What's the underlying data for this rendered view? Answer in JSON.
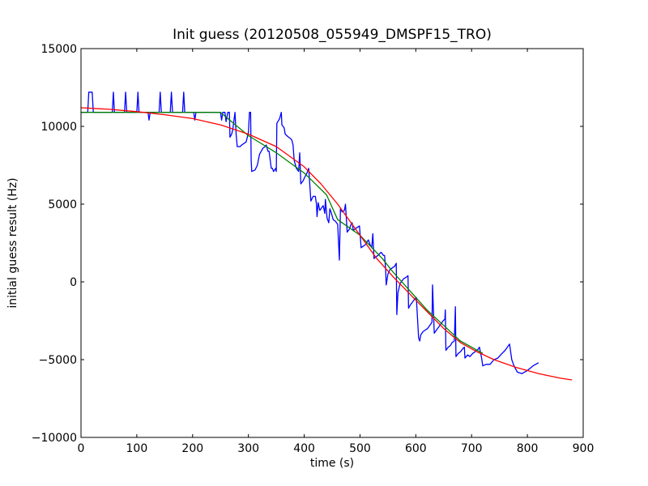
{
  "chart_data": {
    "type": "line",
    "title": "Init guess (20120508_055949_DMSPF15_TRO)",
    "xlabel": "time (s)",
    "ylabel": "initial guess result (Hz)",
    "xlim": [
      0,
      900
    ],
    "ylim": [
      -10000,
      15000
    ],
    "xticks": [
      0,
      100,
      200,
      300,
      400,
      500,
      600,
      700,
      800,
      900
    ],
    "yticks": [
      -10000,
      -5000,
      0,
      5000,
      10000,
      15000
    ],
    "grid": false,
    "legend": "none",
    "series": [
      {
        "color": "#0000ff",
        "points": [
          [
            0,
            10900
          ],
          [
            12,
            10900
          ],
          [
            14,
            12200
          ],
          [
            20,
            12200
          ],
          [
            22,
            10900
          ],
          [
            56,
            10900
          ],
          [
            58,
            12200
          ],
          [
            60,
            10900
          ],
          [
            78,
            10900
          ],
          [
            80,
            12200
          ],
          [
            82,
            10900
          ],
          [
            100,
            10900
          ],
          [
            102,
            12200
          ],
          [
            104,
            10900
          ],
          [
            120,
            10900
          ],
          [
            122,
            10400
          ],
          [
            124,
            10900
          ],
          [
            140,
            10900
          ],
          [
            142,
            12200
          ],
          [
            144,
            10900
          ],
          [
            160,
            10900
          ],
          [
            162,
            12200
          ],
          [
            164,
            10900
          ],
          [
            182,
            10900
          ],
          [
            184,
            12200
          ],
          [
            186,
            10900
          ],
          [
            202,
            10900
          ],
          [
            204,
            10400
          ],
          [
            206,
            10900
          ],
          [
            250,
            10900
          ],
          [
            252,
            10400
          ],
          [
            254,
            10900
          ],
          [
            258,
            10900
          ],
          [
            260,
            10300
          ],
          [
            263,
            10900
          ],
          [
            266,
            10900
          ],
          [
            267,
            9300
          ],
          [
            270,
            9500
          ],
          [
            272,
            9800
          ],
          [
            276,
            10900
          ],
          [
            278,
            9500
          ],
          [
            280,
            8700
          ],
          [
            285,
            8700
          ],
          [
            288,
            8800
          ],
          [
            292,
            8900
          ],
          [
            296,
            9000
          ],
          [
            300,
            9600
          ],
          [
            302,
            10900
          ],
          [
            304,
            10900
          ],
          [
            305,
            7800
          ],
          [
            306,
            7100
          ],
          [
            312,
            7200
          ],
          [
            316,
            7500
          ],
          [
            320,
            8200
          ],
          [
            326,
            8600
          ],
          [
            330,
            8700
          ],
          [
            332,
            8800
          ],
          [
            335,
            8400
          ],
          [
            337,
            8400
          ],
          [
            341,
            7300
          ],
          [
            343,
            7300
          ],
          [
            345,
            7100
          ],
          [
            349,
            7300
          ],
          [
            350,
            7100
          ],
          [
            351,
            10200
          ],
          [
            356,
            10500
          ],
          [
            359,
            10900
          ],
          [
            360,
            10100
          ],
          [
            364,
            9900
          ],
          [
            366,
            9500
          ],
          [
            372,
            9300
          ],
          [
            376,
            9200
          ],
          [
            378,
            9100
          ],
          [
            380,
            8800
          ],
          [
            382,
            7800
          ],
          [
            386,
            7300
          ],
          [
            390,
            7100
          ],
          [
            392,
            8300
          ],
          [
            394,
            6300
          ],
          [
            398,
            6500
          ],
          [
            402,
            6800
          ],
          [
            405,
            7000
          ],
          [
            408,
            7300
          ],
          [
            410,
            6300
          ],
          [
            412,
            5200
          ],
          [
            416,
            5500
          ],
          [
            420,
            5500
          ],
          [
            422,
            5000
          ],
          [
            423,
            4200
          ],
          [
            425,
            5100
          ],
          [
            428,
            4600
          ],
          [
            434,
            4900
          ],
          [
            437,
            4400
          ],
          [
            438,
            5300
          ],
          [
            441,
            4100
          ],
          [
            444,
            3800
          ],
          [
            446,
            4700
          ],
          [
            448,
            4500
          ],
          [
            452,
            4000
          ],
          [
            456,
            3900
          ],
          [
            460,
            3700
          ],
          [
            463,
            1400
          ],
          [
            465,
            4700
          ],
          [
            468,
            4500
          ],
          [
            472,
            4600
          ],
          [
            474,
            5000
          ],
          [
            477,
            3200
          ],
          [
            481,
            3400
          ],
          [
            484,
            3700
          ],
          [
            486,
            3800
          ],
          [
            488,
            3300
          ],
          [
            491,
            3400
          ],
          [
            495,
            3500
          ],
          [
            499,
            3600
          ],
          [
            502,
            2200
          ],
          [
            506,
            2300
          ],
          [
            510,
            2400
          ],
          [
            513,
            2600
          ],
          [
            515,
            2700
          ],
          [
            518,
            2400
          ],
          [
            521,
            2200
          ],
          [
            523,
            3100
          ],
          [
            525,
            1500
          ],
          [
            528,
            1600
          ],
          [
            532,
            1700
          ],
          [
            535,
            1800
          ],
          [
            538,
            1900
          ],
          [
            540,
            1800
          ],
          [
            542,
            1700
          ],
          [
            544,
            1700
          ],
          [
            546,
            800
          ],
          [
            547,
            -200
          ],
          [
            550,
            500
          ],
          [
            554,
            800
          ],
          [
            558,
            900
          ],
          [
            562,
            1000
          ],
          [
            565,
            1200
          ],
          [
            566,
            -2100
          ],
          [
            568,
            -700
          ],
          [
            572,
            -100
          ],
          [
            578,
            200
          ],
          [
            583,
            300
          ],
          [
            586,
            400
          ],
          [
            587,
            -1700
          ],
          [
            590,
            -1500
          ],
          [
            594,
            -1300
          ],
          [
            598,
            -1100
          ],
          [
            601,
            -1000
          ],
          [
            605,
            -3600
          ],
          [
            607,
            -3800
          ],
          [
            609,
            -3400
          ],
          [
            613,
            -3200
          ],
          [
            617,
            -3100
          ],
          [
            621,
            -3000
          ],
          [
            625,
            -2800
          ],
          [
            629,
            -2600
          ],
          [
            630,
            -200
          ],
          [
            633,
            -3300
          ],
          [
            637,
            -3100
          ],
          [
            641,
            -2900
          ],
          [
            645,
            -2700
          ],
          [
            649,
            -2500
          ],
          [
            652,
            -2400
          ],
          [
            653,
            -1800
          ],
          [
            654,
            -4400
          ],
          [
            658,
            -4200
          ],
          [
            662,
            -4100
          ],
          [
            665,
            -3900
          ],
          [
            669,
            -3800
          ],
          [
            671,
            -1600
          ],
          [
            672,
            -4800
          ],
          [
            676,
            -4600
          ],
          [
            680,
            -4500
          ],
          [
            684,
            -4300
          ],
          [
            687,
            -4200
          ],
          [
            688,
            -4900
          ],
          [
            693,
            -4700
          ],
          [
            697,
            -4800
          ],
          [
            702,
            -4600
          ],
          [
            706,
            -4500
          ],
          [
            708,
            -4400
          ],
          [
            710,
            -4400
          ],
          [
            712,
            -4300
          ],
          [
            714,
            -4200
          ],
          [
            718,
            -4900
          ],
          [
            720,
            -5400
          ],
          [
            726,
            -5300
          ],
          [
            733,
            -5300
          ],
          [
            740,
            -5000
          ],
          [
            747,
            -4900
          ],
          [
            752,
            -4700
          ],
          [
            760,
            -4400
          ],
          [
            768,
            -4000
          ],
          [
            772,
            -5000
          ],
          [
            776,
            -5400
          ],
          [
            782,
            -5800
          ],
          [
            790,
            -5900
          ],
          [
            800,
            -5700
          ],
          [
            810,
            -5400
          ],
          [
            820,
            -5200
          ]
        ]
      },
      {
        "color": "#008000",
        "points": [
          [
            0,
            10900
          ],
          [
            250,
            10900
          ],
          [
            300,
            9400
          ],
          [
            350,
            8300
          ],
          [
            400,
            7000
          ],
          [
            440,
            5600
          ],
          [
            460,
            4000
          ],
          [
            500,
            3000
          ],
          [
            540,
            1500
          ],
          [
            560,
            600
          ],
          [
            600,
            -1000
          ],
          [
            620,
            -1800
          ],
          [
            650,
            -2800
          ],
          [
            680,
            -3800
          ],
          [
            700,
            -4200
          ],
          [
            720,
            -4600
          ]
        ]
      },
      {
        "color": "#ff0000",
        "points": [
          [
            0,
            11200
          ],
          [
            50,
            11100
          ],
          [
            100,
            10950
          ],
          [
            150,
            10750
          ],
          [
            200,
            10500
          ],
          [
            250,
            10100
          ],
          [
            300,
            9500
          ],
          [
            350,
            8700
          ],
          [
            400,
            7400
          ],
          [
            430,
            6300
          ],
          [
            460,
            5000
          ],
          [
            500,
            3000
          ],
          [
            530,
            1500
          ],
          [
            560,
            300
          ],
          [
            590,
            -800
          ],
          [
            620,
            -1900
          ],
          [
            650,
            -3000
          ],
          [
            680,
            -3900
          ],
          [
            710,
            -4500
          ],
          [
            740,
            -5000
          ],
          [
            780,
            -5500
          ],
          [
            820,
            -5900
          ],
          [
            860,
            -6200
          ],
          [
            880,
            -6300
          ]
        ]
      }
    ]
  }
}
